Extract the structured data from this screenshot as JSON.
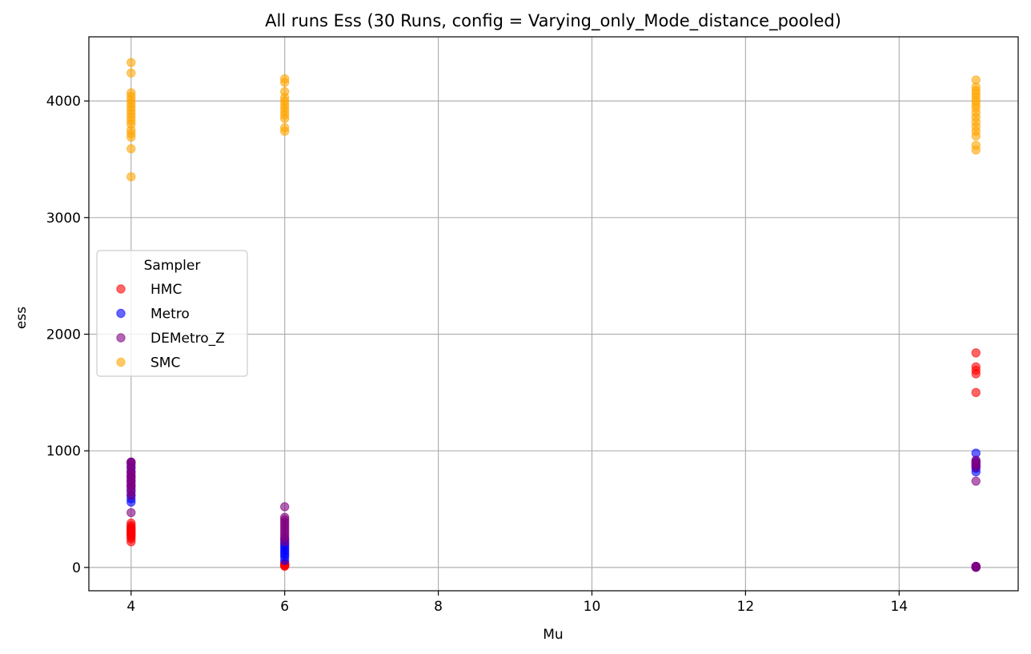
{
  "chart_data": {
    "type": "scatter",
    "title": "All runs Ess (30 Runs, config = Varying_only_Mode_distance_pooled)",
    "xlabel": "Mu",
    "ylabel": "ess",
    "xlim": [
      3.45,
      15.55
    ],
    "ylim": [
      -200,
      4550
    ],
    "xticks": [
      4,
      6,
      8,
      10,
      12,
      14
    ],
    "yticks": [
      0,
      1000,
      2000,
      3000,
      4000
    ],
    "grid": true,
    "legend": {
      "title": "Sampler",
      "position": "center-left"
    },
    "series": [
      {
        "name": "HMC",
        "color": "#ff0000",
        "points": [
          [
            4,
            220
          ],
          [
            4,
            245
          ],
          [
            4,
            260
          ],
          [
            4,
            275
          ],
          [
            4,
            285
          ],
          [
            4,
            295
          ],
          [
            4,
            305
          ],
          [
            4,
            315
          ],
          [
            4,
            325
          ],
          [
            4,
            335
          ],
          [
            4,
            345
          ],
          [
            4,
            360
          ],
          [
            4,
            380
          ],
          [
            6,
            10
          ],
          [
            6,
            15
          ],
          [
            6,
            20
          ],
          [
            6,
            25
          ],
          [
            6,
            30
          ],
          [
            6,
            35
          ],
          [
            15,
            1500
          ],
          [
            15,
            1660
          ],
          [
            15,
            1690
          ],
          [
            15,
            1720
          ],
          [
            15,
            1840
          ],
          [
            15,
            3
          ],
          [
            15,
            5
          ],
          [
            15,
            8
          ]
        ]
      },
      {
        "name": "Metro",
        "color": "#0000ff",
        "points": [
          [
            4,
            560
          ],
          [
            4,
            590
          ],
          [
            4,
            620
          ],
          [
            4,
            660
          ],
          [
            4,
            700
          ],
          [
            4,
            740
          ],
          [
            4,
            780
          ],
          [
            4,
            820
          ],
          [
            4,
            860
          ],
          [
            4,
            900
          ],
          [
            6,
            60
          ],
          [
            6,
            90
          ],
          [
            6,
            110
          ],
          [
            6,
            130
          ],
          [
            6,
            150
          ],
          [
            6,
            170
          ],
          [
            6,
            190
          ],
          [
            6,
            210
          ],
          [
            6,
            240
          ],
          [
            15,
            820
          ],
          [
            15,
            850
          ],
          [
            15,
            870
          ],
          [
            15,
            890
          ],
          [
            15,
            910
          ],
          [
            15,
            980
          ],
          [
            15,
            2
          ],
          [
            15,
            5
          ],
          [
            15,
            9
          ]
        ]
      },
      {
        "name": "DEMetro_Z",
        "color": "#800080",
        "points": [
          [
            4,
            470
          ],
          [
            4,
            620
          ],
          [
            4,
            650
          ],
          [
            4,
            680
          ],
          [
            4,
            700
          ],
          [
            4,
            720
          ],
          [
            4,
            740
          ],
          [
            4,
            760
          ],
          [
            4,
            780
          ],
          [
            4,
            800
          ],
          [
            4,
            820
          ],
          [
            4,
            850
          ],
          [
            4,
            880
          ],
          [
            4,
            900
          ],
          [
            4,
            905
          ],
          [
            6,
            220
          ],
          [
            6,
            250
          ],
          [
            6,
            270
          ],
          [
            6,
            290
          ],
          [
            6,
            310
          ],
          [
            6,
            330
          ],
          [
            6,
            350
          ],
          [
            6,
            370
          ],
          [
            6,
            390
          ],
          [
            6,
            410
          ],
          [
            6,
            430
          ],
          [
            6,
            520
          ],
          [
            15,
            740
          ],
          [
            15,
            860
          ],
          [
            15,
            880
          ],
          [
            15,
            900
          ],
          [
            15,
            920
          ],
          [
            15,
            1
          ],
          [
            15,
            4
          ],
          [
            15,
            7
          ],
          [
            15,
            10
          ]
        ]
      },
      {
        "name": "SMC",
        "color": "#ffa500",
        "points": [
          [
            4,
            3350
          ],
          [
            4,
            3590
          ],
          [
            4,
            3690
          ],
          [
            4,
            3720
          ],
          [
            4,
            3750
          ],
          [
            4,
            3800
          ],
          [
            4,
            3830
          ],
          [
            4,
            3860
          ],
          [
            4,
            3890
          ],
          [
            4,
            3920
          ],
          [
            4,
            3950
          ],
          [
            4,
            3980
          ],
          [
            4,
            4010
          ],
          [
            4,
            4040
          ],
          [
            4,
            4070
          ],
          [
            4,
            4240
          ],
          [
            4,
            4330
          ],
          [
            6,
            3740
          ],
          [
            6,
            3770
          ],
          [
            6,
            3850
          ],
          [
            6,
            3880
          ],
          [
            6,
            3910
          ],
          [
            6,
            3940
          ],
          [
            6,
            3970
          ],
          [
            6,
            4000
          ],
          [
            6,
            4030
          ],
          [
            6,
            4080
          ],
          [
            6,
            4160
          ],
          [
            6,
            4190
          ],
          [
            15,
            3580
          ],
          [
            15,
            3620
          ],
          [
            15,
            3700
          ],
          [
            15,
            3740
          ],
          [
            15,
            3780
          ],
          [
            15,
            3820
          ],
          [
            15,
            3860
          ],
          [
            15,
            3900
          ],
          [
            15,
            3940
          ],
          [
            15,
            3970
          ],
          [
            15,
            4000
          ],
          [
            15,
            4030
          ],
          [
            15,
            4060
          ],
          [
            15,
            4090
          ],
          [
            15,
            4120
          ],
          [
            15,
            4180
          ]
        ]
      }
    ]
  }
}
